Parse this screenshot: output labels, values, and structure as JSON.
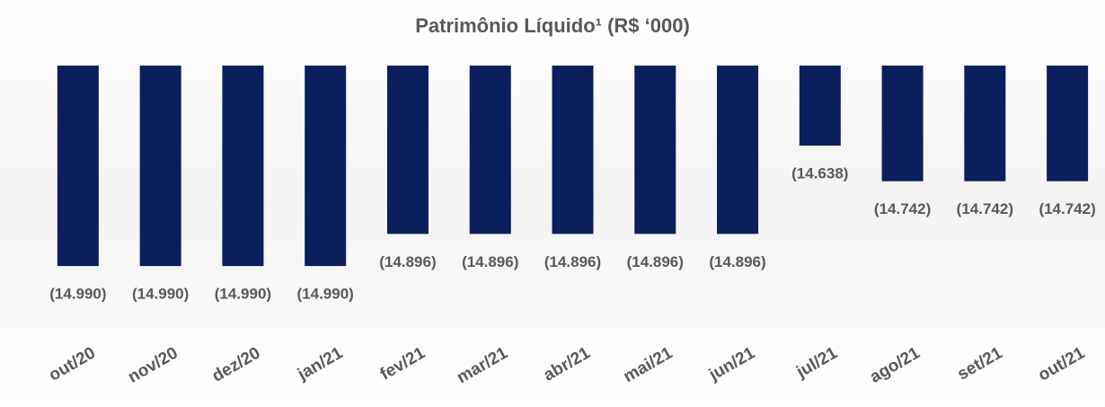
{
  "chart_data": {
    "type": "bar",
    "title": "Patrimônio Líquido¹ (R$ ‘000)",
    "categories": [
      "out/20",
      "nov/20",
      "dez/20",
      "jan/21",
      "fev/21",
      "mar/21",
      "abr/21",
      "mai/21",
      "jun/21",
      "jul/21",
      "ago/21",
      "set/21",
      "out/21"
    ],
    "values": [
      -14990,
      -14990,
      -14990,
      -14990,
      -14896,
      -14896,
      -14896,
      -14896,
      -14896,
      -14638,
      -14742,
      -14742,
      -14742
    ],
    "value_labels": [
      "(14.990)",
      "(14.990)",
      "(14.990)",
      "(14.990)",
      "(14.896)",
      "(14.896)",
      "(14.896)",
      "(14.896)",
      "(14.896)",
      "(14.638)",
      "(14.742)",
      "(14.742)",
      "(14.742)"
    ],
    "color": "#0b1f5c",
    "ylim": [
      -15100,
      -14404
    ]
  }
}
